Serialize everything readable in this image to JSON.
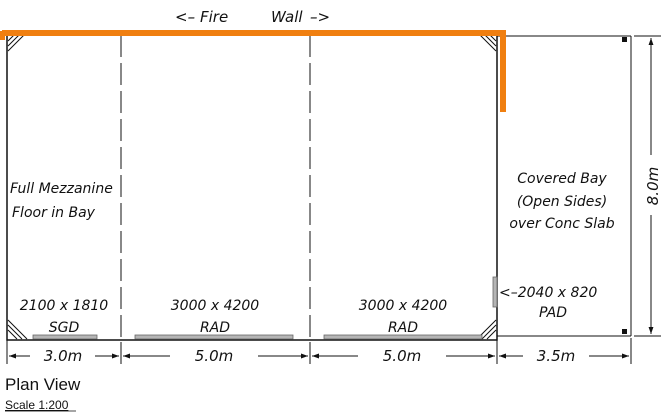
{
  "colors": {
    "fire_wall": "#f07f10",
    "ink": "#111111",
    "door": "#b5b5b5"
  },
  "fire_wall_label": {
    "left_arrow": "<–",
    "word1": "Fire",
    "word2": "Wall",
    "right_arrow": "–>"
  },
  "bays": {
    "mezzanine_line1": "Full Mezzanine",
    "mezzanine_line2": "Floor in Bay",
    "covered_line1": "Covered Bay",
    "covered_line2": "(Open Sides)",
    "covered_line3": "over Conc Slab"
  },
  "openings": {
    "sgd_size": "2100 x 1810",
    "sgd_type": "SGD",
    "rad1_size": "3000 x 4200",
    "rad1_type": "RAD",
    "rad2_size": "3000 x 4200",
    "rad2_type": "RAD",
    "pad_size": "<–2040 x 820",
    "pad_type": "PAD"
  },
  "dimensions": {
    "d1": "3.0m",
    "d2": "5.0m",
    "d3": "5.0m",
    "d4": "3.5m",
    "height": "8.0m"
  },
  "caption": {
    "title": "Plan View",
    "scale": "Scale 1:200"
  }
}
